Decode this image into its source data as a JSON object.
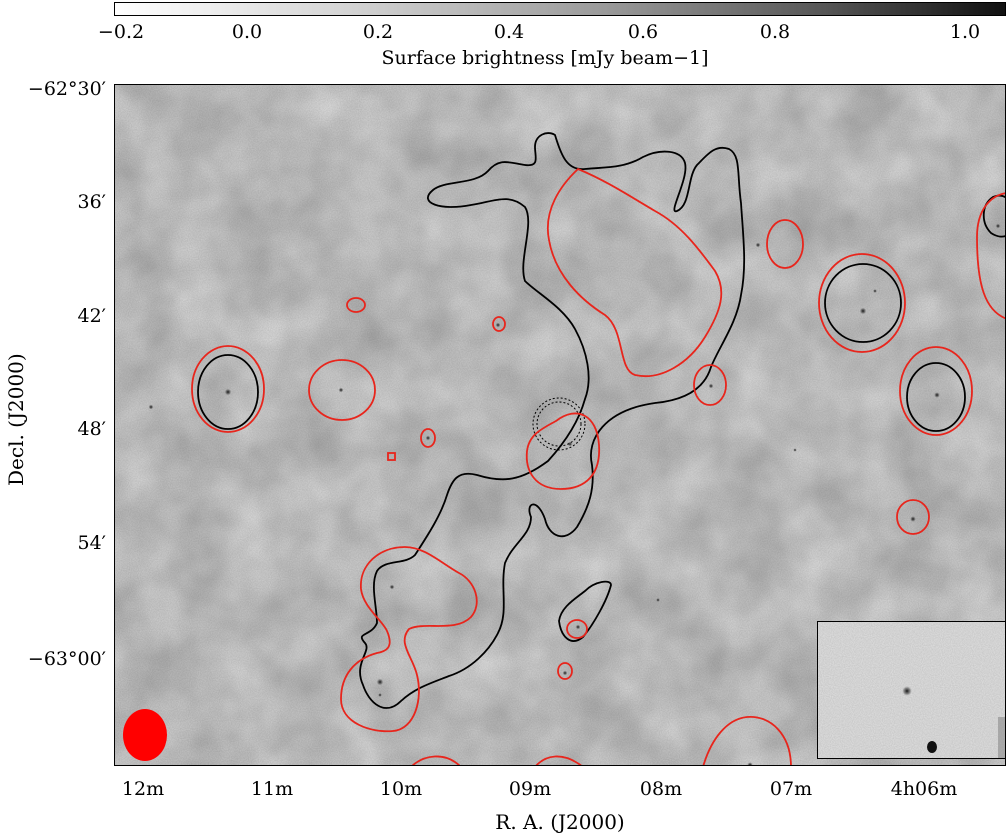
{
  "colorbar": {
    "ticks": [
      "−0.2",
      "0.0",
      "0.2",
      "0.4",
      "0.6",
      "0.8",
      "1.0"
    ],
    "label": "Surface brightness [mJy beam−1]",
    "scale_min": -0.2,
    "scale_max": 1.05,
    "low_color": "#ffffff",
    "high_color": "#111111"
  },
  "axes": {
    "y_ticks": [
      "−62°30′",
      "36′",
      "42′",
      "48′",
      "54′",
      "−63°00′"
    ],
    "x_ticks": [
      "12m",
      "11m",
      "10m",
      "09m",
      "08m",
      "07m",
      "4h06m"
    ],
    "x_label": "R. A. (J2000)",
    "y_label": "Decl. (J2000)"
  },
  "colors": {
    "contour_black": "#000000",
    "contour_red": "#e8251c",
    "beam": "#ff0000"
  }
}
